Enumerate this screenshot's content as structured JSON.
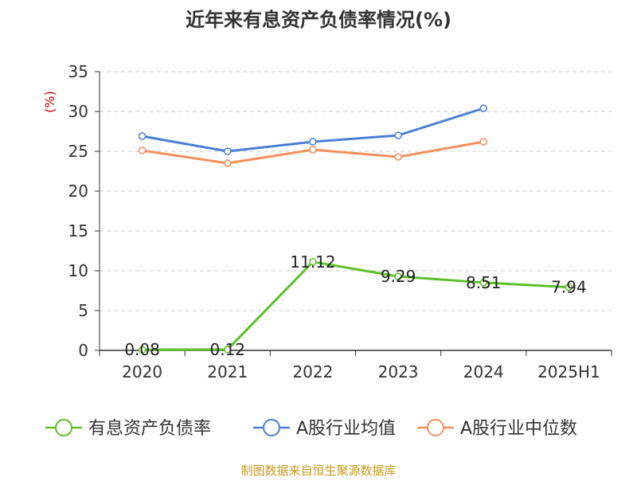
{
  "chart_data": {
    "type": "line",
    "title": "近年来有息资产负债率情况(%)",
    "ylabel": "(%)",
    "categories": [
      "2020",
      "2021",
      "2022",
      "2023",
      "2024",
      "2025H1"
    ],
    "yticks": [
      "0",
      "5",
      "10",
      "15",
      "20",
      "25",
      "30",
      "35"
    ],
    "ylim": [
      0,
      35
    ],
    "grid": true,
    "legend_position": "bottom",
    "series": [
      {
        "name": "有息资产负债率",
        "color": "#5cc128",
        "values": [
          0.08,
          0.12,
          11.12,
          9.29,
          8.51,
          7.94
        ],
        "labels": [
          "0.08",
          "0.12",
          "11.12",
          "9.29",
          "8.51",
          "7.94"
        ]
      },
      {
        "name": "A股行业均值",
        "color": "#4a7fd6",
        "values": [
          26.9,
          25.0,
          26.2,
          27.0,
          30.4,
          null
        ]
      },
      {
        "name": "A股行业中位数",
        "color": "#f5905a",
        "values": [
          25.1,
          23.5,
          25.2,
          24.3,
          26.2,
          null
        ]
      }
    ]
  },
  "source": "制图数据来自恒生聚源数据库"
}
